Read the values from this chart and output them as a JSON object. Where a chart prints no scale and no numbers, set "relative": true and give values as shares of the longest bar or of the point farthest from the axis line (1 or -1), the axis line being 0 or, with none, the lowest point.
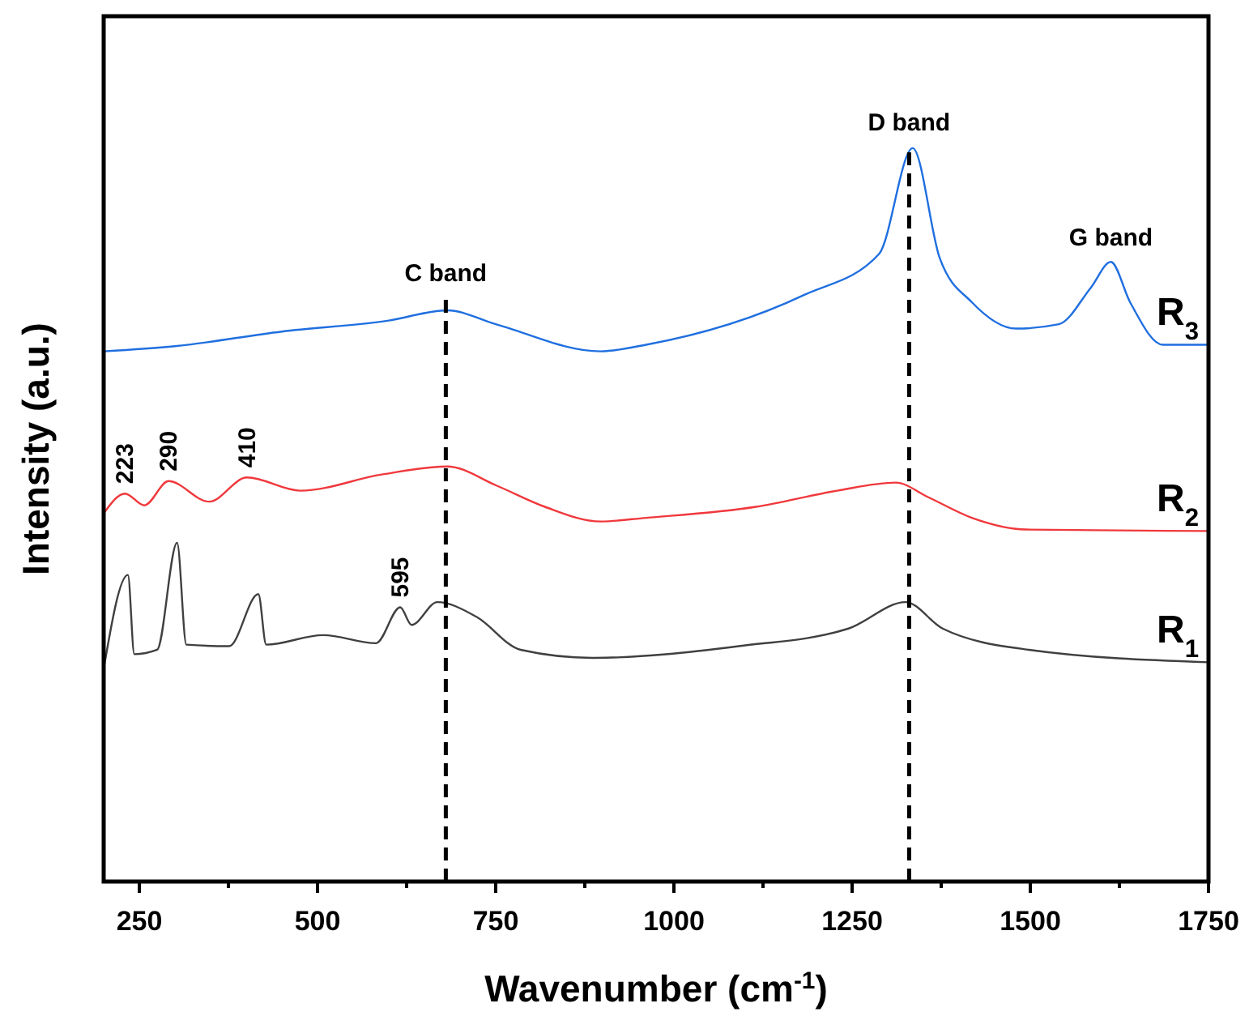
{
  "chart_data": {
    "type": "line",
    "relative": true,
    "xlabel": "Wavenumber (cm$^{-1}$)",
    "ylabel": "Intensity (a.u.)",
    "xlim": [
      200,
      1750
    ],
    "xticks": [
      250,
      {
        "value": 375,
        "label": null
      },
      500,
      {
        "value": 625,
        "label": null
      },
      750,
      {
        "value": 875,
        "label": null
      },
      1000,
      {
        "value": 1125,
        "label": null
      },
      1250,
      {
        "value": 1375,
        "label": null
      },
      1500,
      {
        "value": 1625,
        "label": null
      },
      1750
    ],
    "x": [
      200,
      234,
      243,
      275,
      303,
      316,
      376,
      417,
      428,
      508,
      582,
      616,
      632,
      668,
      723,
      785,
      886,
      1091,
      1245,
      1325,
      1377,
      1498,
      1750
    ],
    "line_style": "solid",
    "series": [
      {
        "name": "R$_{1}$",
        "color": "#404040",
        "values": [
          0.29,
          0.418,
          0.31,
          0.316,
          0.462,
          0.323,
          0.321,
          0.392,
          0.323,
          0.336,
          0.325,
          0.374,
          0.35,
          0.381,
          0.361,
          0.316,
          0.305,
          0.321,
          0.345,
          0.381,
          0.345,
          0.316,
          0.299
        ]
      },
      {
        "name": "R$_{2}$",
        "color": "#f0383c",
        "x": [
          200,
          230,
          257,
          291,
          348,
          401,
          476,
          590,
          682,
          751,
          819,
          897,
          961,
          1115,
          1229,
          1311,
          1357,
          1418,
          1494,
          1750
        ],
        "values": [
          0.502,
          0.529,
          0.513,
          0.546,
          0.518,
          0.551,
          0.533,
          0.555,
          0.566,
          0.54,
          0.511,
          0.491,
          0.496,
          0.511,
          0.533,
          0.544,
          0.524,
          0.496,
          0.48,
          0.478
        ]
      },
      {
        "name": "R$_{3}$",
        "color": "#1f6fe0",
        "x": [
          200,
          300,
          450,
          600,
          682,
          750,
          897,
          961,
          1183,
          1288,
          1335,
          1373,
          1418,
          1480,
          1540,
          1585,
          1613,
          1640,
          1686,
          1750
        ],
        "values": [
          0.723,
          0.73,
          0.75,
          0.765,
          0.779,
          0.76,
          0.723,
          0.732,
          0.8,
          0.856,
          1,
          0.85,
          0.79,
          0.754,
          0.76,
          0.81,
          0.845,
          0.79,
          0.732,
          0.732
        ]
      }
    ],
    "ref_lines": [
      {
        "axis": "x",
        "value": 680,
        "label": "C band",
        "line_style": "dashed",
        "color": "#000000"
      },
      {
        "axis": "x",
        "value": 1330,
        "label": "D band",
        "line_style": "dashed",
        "color": "#000000"
      }
    ],
    "annotations": [
      {
        "text": "G band",
        "x": 1613,
        "y": 0.845
      },
      {
        "text": "223",
        "x": 230,
        "y": 0.529
      },
      {
        "text": "290",
        "x": 291,
        "y": 0.546
      },
      {
        "text": "410",
        "x": 401,
        "y": 0.551
      },
      {
        "text": "595",
        "x": 616,
        "y": 0.374
      }
    ]
  }
}
